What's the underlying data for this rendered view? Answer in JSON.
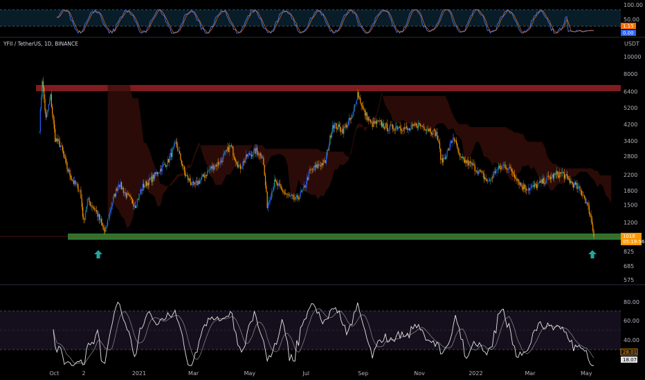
{
  "symbol_label": "YFII / TetherUS, 1D, BINANCE",
  "colors": {
    "background": "#000000",
    "candle_up": "#2962ff",
    "candle_up_alt": "#26a69a",
    "candle_down": "#ff9800",
    "resistance_zone": "#8b1e23",
    "support_zone": "#2e7d32",
    "arrow": "#26a69a",
    "stoch_k": "#2962ff",
    "stoch_d": "#ff6d00",
    "stoch_band": "#102a3d",
    "rsi_line": "#e0e0e0",
    "rsi_ma": "#9e9e9e",
    "rsi_band": "#1b1226",
    "cloud": "#3a0f0a",
    "price_tag": "#ff9800"
  },
  "chart_data": [
    {
      "type": "line",
      "name": "stochastic",
      "ticks": [
        "100.00",
        "50.00"
      ],
      "tag_k": "1.15",
      "tag_d": "0.00",
      "ylim": [
        0,
        100
      ]
    },
    {
      "type": "candlestick",
      "name": "price",
      "scale": "log",
      "unit": "USDT",
      "ticks": [
        "10000",
        "8000",
        "6400",
        "5200",
        "4200",
        "3400",
        "2800",
        "2200",
        "1800",
        "1500",
        "1200",
        "1000",
        "825",
        "685",
        "575"
      ],
      "tick_values": [
        10000,
        8000,
        6400,
        5200,
        4200,
        3400,
        2800,
        2200,
        1800,
        1500,
        1200,
        1000,
        825,
        685,
        575
      ],
      "x_labels": [
        "Oct",
        "2",
        "2021",
        "Mar",
        "May",
        "Jul",
        "Sep",
        "Nov",
        "2022",
        "Mar",
        "May"
      ],
      "resistance_zone": [
        6500,
        7100
      ],
      "support_zone": [
        950,
        1050
      ],
      "last_price_label": "1018",
      "countdown_label": "05:19:56",
      "anchors": [
        [
          "2020-09-15",
          4000
        ],
        [
          "2020-09-18",
          7500
        ],
        [
          "2020-09-22",
          4500
        ],
        [
          "2020-09-27",
          6000
        ],
        [
          "2020-10-02",
          3500
        ],
        [
          "2020-10-08",
          3200
        ],
        [
          "2020-10-15",
          2400
        ],
        [
          "2020-10-22",
          2000
        ],
        [
          "2020-10-29",
          1800
        ],
        [
          "2020-11-02",
          1200
        ],
        [
          "2020-11-06",
          1600
        ],
        [
          "2020-11-15",
          1400
        ],
        [
          "2020-11-25",
          1050
        ],
        [
          "2020-12-02",
          1500
        ],
        [
          "2020-12-10",
          2000
        ],
        [
          "2020-12-18",
          1700
        ],
        [
          "2020-12-28",
          1500
        ],
        [
          "2021-01-05",
          1900
        ],
        [
          "2021-01-15",
          2100
        ],
        [
          "2021-01-25",
          2400
        ],
        [
          "2021-02-01",
          2600
        ],
        [
          "2021-02-10",
          3300
        ],
        [
          "2021-02-20",
          2200
        ],
        [
          "2021-03-01",
          1900
        ],
        [
          "2021-03-10",
          2100
        ],
        [
          "2021-03-20",
          2400
        ],
        [
          "2021-03-30",
          2600
        ],
        [
          "2021-04-10",
          3200
        ],
        [
          "2021-04-20",
          2400
        ],
        [
          "2021-04-28",
          2800
        ],
        [
          "2021-05-08",
          3000
        ],
        [
          "2021-05-15",
          2800
        ],
        [
          "2021-05-20",
          1500
        ],
        [
          "2021-05-28",
          2000
        ],
        [
          "2021-06-10",
          1700
        ],
        [
          "2021-06-20",
          1600
        ],
        [
          "2021-06-28",
          1800
        ],
        [
          "2021-07-05",
          2300
        ],
        [
          "2021-07-15",
          2500
        ],
        [
          "2021-07-22",
          2600
        ],
        [
          "2021-07-30",
          4200
        ],
        [
          "2021-08-10",
          3900
        ],
        [
          "2021-08-20",
          4600
        ],
        [
          "2021-08-26",
          6300
        ],
        [
          "2021-09-02",
          4900
        ],
        [
          "2021-09-10",
          4200
        ],
        [
          "2021-09-18",
          4300
        ],
        [
          "2021-09-28",
          4000
        ],
        [
          "2021-10-10",
          4100
        ],
        [
          "2021-10-20",
          3900
        ],
        [
          "2021-10-30",
          4200
        ],
        [
          "2021-11-10",
          4000
        ],
        [
          "2021-11-20",
          3700
        ],
        [
          "2021-11-25",
          2600
        ],
        [
          "2021-12-02",
          3000
        ],
        [
          "2021-12-08",
          3600
        ],
        [
          "2021-12-15",
          2700
        ],
        [
          "2021-12-28",
          2500
        ],
        [
          "2022-01-08",
          2200
        ],
        [
          "2022-01-15",
          2000
        ],
        [
          "2022-01-22",
          2300
        ],
        [
          "2022-02-01",
          2500
        ],
        [
          "2022-02-10",
          2300
        ],
        [
          "2022-02-20",
          1900
        ],
        [
          "2022-03-01",
          1850
        ],
        [
          "2022-03-10",
          1950
        ],
        [
          "2022-03-20",
          2100
        ],
        [
          "2022-03-28",
          2200
        ],
        [
          "2022-04-05",
          2250
        ],
        [
          "2022-04-12",
          2050
        ],
        [
          "2022-04-20",
          1900
        ],
        [
          "2022-04-28",
          1700
        ],
        [
          "2022-05-05",
          1350
        ],
        [
          "2022-05-09",
          1018
        ]
      ]
    },
    {
      "type": "line",
      "name": "rsi",
      "ticks": [
        "80.00",
        "60.00",
        "40.00"
      ],
      "tag_value": "28.01",
      "tag_ma": "18.07",
      "ylim": [
        20,
        90
      ]
    }
  ]
}
